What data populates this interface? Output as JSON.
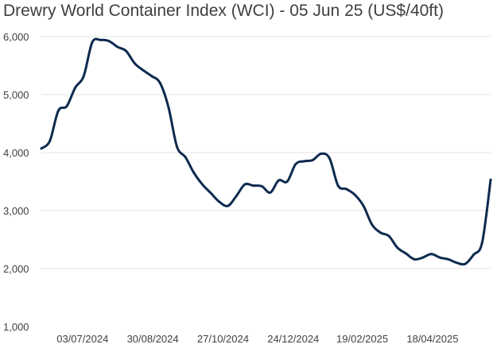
{
  "title": "Drewry World Container Index (WCI) - 05 Jun 25 (US$/40ft)",
  "colors": {
    "line": "#0e2a4f",
    "grid": "#e3e3e3",
    "text": "#404040"
  },
  "chart_data": {
    "type": "line",
    "title": "Drewry World Container Index (WCI) - 05 Jun 25 (US$/40ft)",
    "xlabel": "",
    "ylabel": "",
    "ylim": [
      1000,
      6000
    ],
    "yticks": [
      1000,
      2000,
      3000,
      4000,
      5000,
      6000
    ],
    "ytick_labels": [
      "1,000",
      "2,000",
      "3,000",
      "4,000",
      "5,000",
      "6,000"
    ],
    "xlim": [
      "2024-05-30",
      "2025-06-05"
    ],
    "xticks": [
      "2024-07-03",
      "2024-08-30",
      "2024-10-27",
      "2024-12-24",
      "2025-02-19",
      "2025-04-18"
    ],
    "xtick_labels": [
      "03/07/2024",
      "30/08/2024",
      "27/10/2024",
      "24/12/2024",
      "19/02/2025",
      "18/04/2025"
    ],
    "grid": "horizontal",
    "legend": "none",
    "series": [
      {
        "x": [
          "2024-05-30",
          "2024-06-06",
          "2024-06-13",
          "2024-06-20",
          "2024-06-27",
          "2024-07-04",
          "2024-07-11",
          "2024-07-18",
          "2024-07-25",
          "2024-08-01",
          "2024-08-08",
          "2024-08-15",
          "2024-08-22",
          "2024-08-29",
          "2024-09-05",
          "2024-09-12",
          "2024-09-19",
          "2024-09-26",
          "2024-10-03",
          "2024-10-10",
          "2024-10-17",
          "2024-10-24",
          "2024-10-31",
          "2024-11-07",
          "2024-11-14",
          "2024-11-21",
          "2024-11-28",
          "2024-12-05",
          "2024-12-12",
          "2024-12-19",
          "2024-12-26",
          "2025-01-02",
          "2025-01-09",
          "2025-01-16",
          "2025-01-23",
          "2025-01-30",
          "2025-02-06",
          "2025-02-13",
          "2025-02-20",
          "2025-02-27",
          "2025-03-06",
          "2025-03-13",
          "2025-03-20",
          "2025-03-27",
          "2025-04-03",
          "2025-04-10",
          "2025-04-17",
          "2025-04-24",
          "2025-05-01",
          "2025-05-08",
          "2025-05-15",
          "2025-05-22",
          "2025-05-29",
          "2025-06-05"
        ],
        "y": [
          4070,
          4200,
          4720,
          4800,
          5120,
          5320,
          5900,
          5940,
          5920,
          5820,
          5750,
          5540,
          5420,
          5320,
          5200,
          4780,
          4100,
          3920,
          3650,
          3450,
          3300,
          3150,
          3080,
          3250,
          3450,
          3430,
          3420,
          3310,
          3520,
          3500,
          3800,
          3850,
          3870,
          3980,
          3900,
          3430,
          3370,
          3270,
          3080,
          2760,
          2620,
          2560,
          2360,
          2260,
          2160,
          2190,
          2250,
          2190,
          2160,
          2100,
          2080,
          2240,
          2450,
          3530
        ]
      }
    ]
  }
}
